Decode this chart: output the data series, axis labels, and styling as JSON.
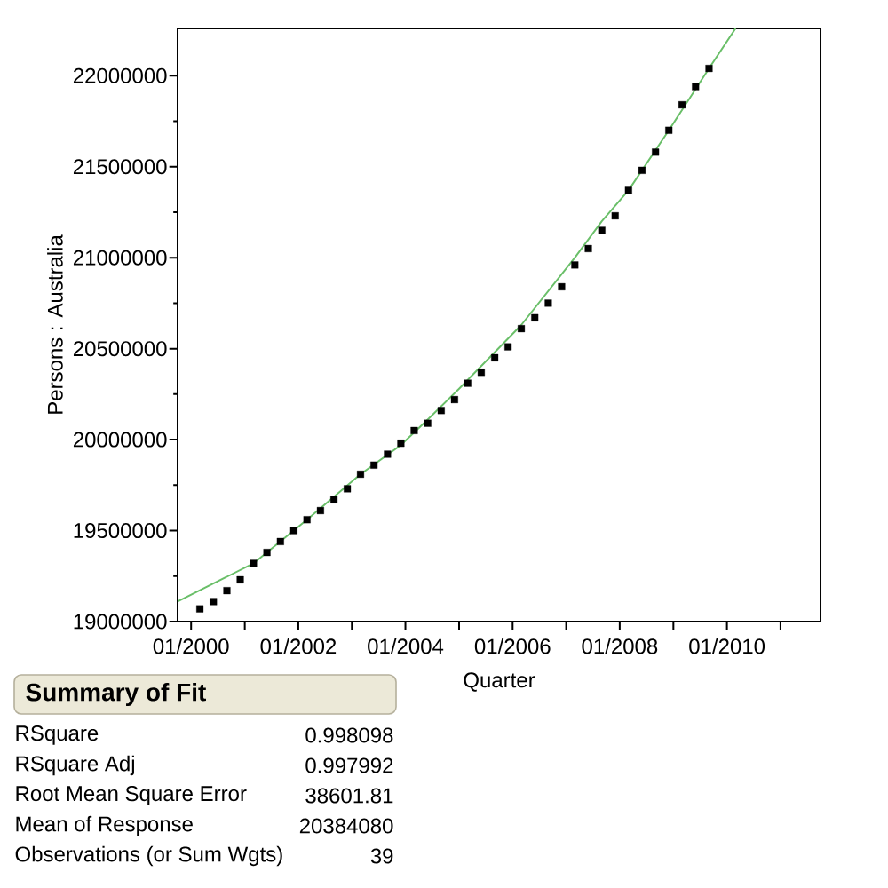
{
  "chart_data": [
    {
      "type": "scatter",
      "xlabel": "Quarter",
      "ylabel": "Persons : Australia",
      "x": [
        "2000-03",
        "2000-06",
        "2000-09",
        "2000-12",
        "2001-03",
        "2001-06",
        "2001-09",
        "2001-12",
        "2002-03",
        "2002-06",
        "2002-09",
        "2002-12",
        "2003-03",
        "2003-06",
        "2003-09",
        "2003-12",
        "2004-03",
        "2004-06",
        "2004-09",
        "2004-12",
        "2005-03",
        "2005-06",
        "2005-09",
        "2005-12",
        "2006-03",
        "2006-06",
        "2006-09",
        "2006-12",
        "2007-03",
        "2007-06",
        "2007-09",
        "2007-12",
        "2008-03",
        "2008-06",
        "2008-09",
        "2008-12",
        "2009-03",
        "2009-06",
        "2009-09"
      ],
      "series": [
        {
          "color": "#000000",
          "marker": "square",
          "values": [
            19070000,
            19110000,
            19170000,
            19230000,
            19320000,
            19380000,
            19440000,
            19500000,
            19560000,
            19610000,
            19670000,
            19730000,
            19810000,
            19860000,
            19920000,
            19980000,
            20050000,
            20090000,
            20160000,
            20220000,
            20310000,
            20370000,
            20450000,
            20510000,
            20610000,
            20670000,
            20750000,
            20840000,
            20960000,
            21050000,
            21150000,
            21230000,
            21370000,
            21480000,
            21580000,
            21700000,
            21840000,
            21940000,
            22040000
          ]
        },
        {
          "type": "line",
          "color": "#6abf69",
          "marker": "none",
          "x": [
            "1999-10-01",
            "2001-03",
            "2002-03",
            "2003-03",
            "2003-12",
            "2004-06",
            "2005-01",
            "2006-03",
            "2007-03",
            "2007-09",
            "2008-03",
            "2008-12",
            "2009-09",
            "2010-03"
          ],
          "values": [
            19110000,
            19320000,
            19560000,
            19810000,
            19970000,
            20110000,
            20280000,
            20630000,
            21000000,
            21200000,
            21370000,
            21700000,
            22040000,
            22260000
          ]
        }
      ],
      "xlim": [
        "1999-10-01",
        "2011-10-01"
      ],
      "ylim": [
        19000000,
        22260000
      ],
      "xticks": [
        {
          "value": "2000-01-01",
          "label": "01/2000"
        },
        {
          "value": "2001-01-01",
          "label": null
        },
        {
          "value": "2002-01-01",
          "label": "01/2002"
        },
        {
          "value": "2003-01-01",
          "label": null
        },
        {
          "value": "2004-01-01",
          "label": "01/2004"
        },
        {
          "value": "2005-01-01",
          "label": null
        },
        {
          "value": "2006-01-01",
          "label": "01/2006"
        },
        {
          "value": "2007-01-01",
          "label": null
        },
        {
          "value": "2008-01-01",
          "label": "01/2008"
        },
        {
          "value": "2009-01-01",
          "label": null
        },
        {
          "value": "2010-01-01",
          "label": "01/2010"
        },
        {
          "value": "2011-01-01",
          "label": null
        }
      ],
      "yticks": [
        19000000,
        {
          "value": 19250000,
          "label": null
        },
        19500000,
        {
          "value": 19750000,
          "label": null
        },
        20000000,
        {
          "value": 20250000,
          "label": null
        },
        20500000,
        {
          "value": 20750000,
          "label": null
        },
        21000000,
        {
          "value": 21250000,
          "label": null
        },
        21500000,
        {
          "value": 21750000,
          "label": null
        },
        22000000
      ]
    },
    {
      "type": "other",
      "title": "Summary of Fit",
      "annotations": [
        "RSquare",
        "0.998098",
        "RSquare Adj",
        "0.997992",
        "Root Mean Square Error",
        "38601.81",
        "Mean of Response",
        "20384080",
        "Observations (or Sum Wgts)",
        "39"
      ]
    }
  ]
}
